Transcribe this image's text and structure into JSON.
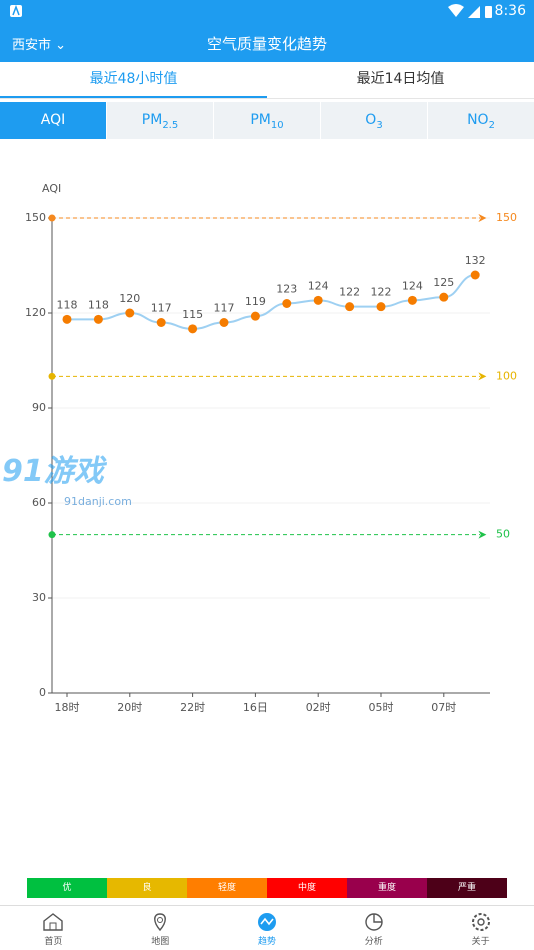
{
  "status_bar": {
    "time": "8:36"
  },
  "header": {
    "city": "西安市",
    "title": "空气质量变化趋势"
  },
  "tabs": [
    "最近48小时值",
    "最近14日均值"
  ],
  "pollutants": [
    {
      "main": "AQI"
    },
    {
      "main": "PM",
      "sub": "2.5"
    },
    {
      "main": "PM",
      "sub": "10"
    },
    {
      "main": "O",
      "sub": "3"
    },
    {
      "main": "NO",
      "sub": "2"
    }
  ],
  "chart_data": {
    "type": "line",
    "y_label": "AQI",
    "categories": [
      "18时",
      null,
      "20时",
      null,
      "22时",
      null,
      "16日",
      null,
      "02时",
      null,
      "05时",
      null,
      "07时",
      null
    ],
    "values": [
      118,
      118,
      120,
      117,
      115,
      117,
      119,
      123,
      124,
      122,
      122,
      124,
      125,
      132
    ],
    "color": "#9ed0f2",
    "marker_color": "#f57c00",
    "ylim": [
      0,
      150
    ],
    "yticks": [
      0,
      30,
      60,
      90,
      120,
      150
    ],
    "grid": true,
    "reference_lines": [
      {
        "value": 150,
        "color": "#f5891f"
      },
      {
        "value": 100,
        "color": "#e6b400"
      },
      {
        "value": 50,
        "color": "#1fc24a"
      }
    ]
  },
  "watermark": {
    "logo": "91游戏",
    "site": "91danji.com"
  },
  "legend": [
    {
      "label": "优",
      "color": "#00c040"
    },
    {
      "label": "良",
      "color": "#e6b800"
    },
    {
      "label": "轻度",
      "color": "#ff7e00"
    },
    {
      "label": "中度",
      "color": "#ff0000"
    },
    {
      "label": "重度",
      "color": "#99004c"
    },
    {
      "label": "严重",
      "color": "#4d0018"
    }
  ],
  "nav": {
    "items": [
      "首页",
      "地图",
      "趋势",
      "分析",
      "关于"
    ],
    "active": 2
  }
}
